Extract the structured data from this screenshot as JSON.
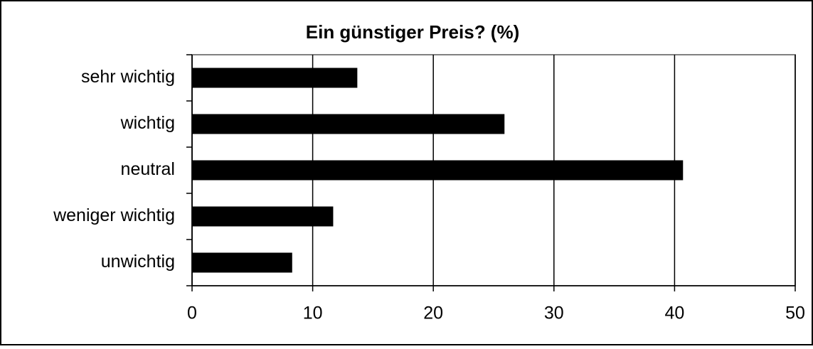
{
  "chart_data": {
    "type": "bar",
    "orientation": "horizontal",
    "title": "Ein günstiger Preis? (%)",
    "categories": [
      "sehr wichtig",
      "wichtig",
      "neutral",
      "weniger wichtig",
      "unwichtig"
    ],
    "values": [
      13.7,
      25.9,
      40.7,
      11.7,
      8.3
    ],
    "color": "#000000",
    "xlim": [
      0,
      50
    ],
    "xticks": [
      0,
      10,
      20,
      30,
      40,
      50
    ],
    "grid": true
  }
}
